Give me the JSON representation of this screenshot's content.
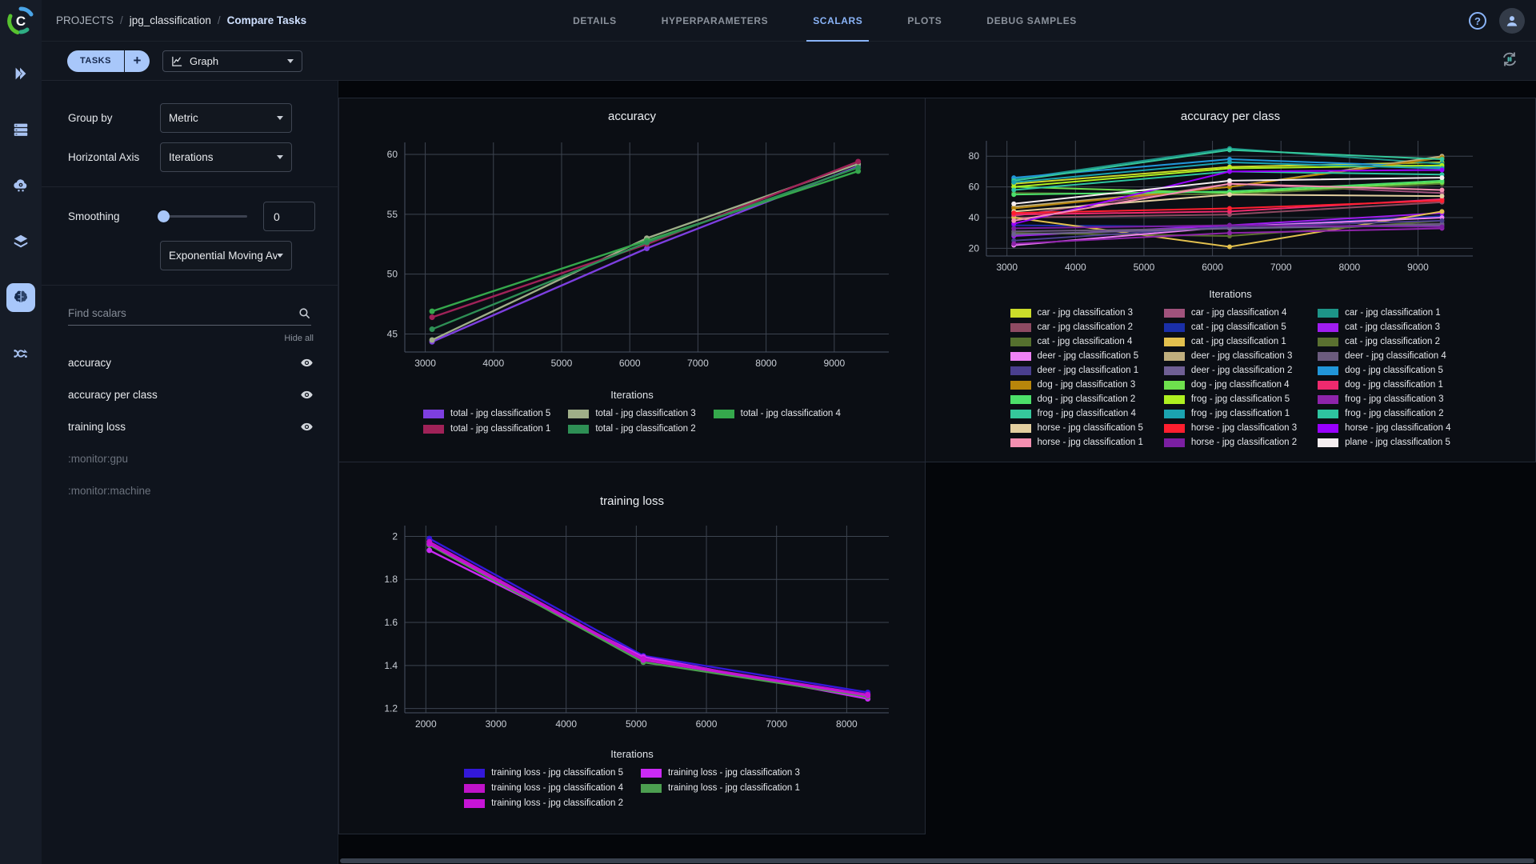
{
  "header": {
    "breadcrumb": [
      "PROJECTS",
      "jpg_classification",
      "Compare Tasks"
    ],
    "separator": "/",
    "tabs": [
      {
        "label": "DETAILS",
        "active": false
      },
      {
        "label": "HYPERPARAMETERS",
        "active": false
      },
      {
        "label": "SCALARS",
        "active": true
      },
      {
        "label": "PLOTS",
        "active": false
      },
      {
        "label": "DEBUG SAMPLES",
        "active": false
      }
    ],
    "help_glyph": "?"
  },
  "toolbar": {
    "tasks_label": "TASKS",
    "add_label": "+",
    "view_selector": "Graph"
  },
  "icons": {
    "rail": [
      "run-icon",
      "workers-icon",
      "applications-icon",
      "datasets-icon",
      "experiments-brain-icon",
      "pipelines-icon"
    ],
    "top_right": [
      "help-icon",
      "user-avatar"
    ],
    "toolbar_right": "refresh-pause-icon"
  },
  "controls": {
    "group_by_label": "Group by",
    "group_by_value": "Metric",
    "horizontal_axis_label": "Horizontal Axis",
    "horizontal_axis_value": "Iterations",
    "smoothing_label": "Smoothing",
    "smoothing_value": "0",
    "smoothing_type_value": "Exponential Moving Av...",
    "search_placeholder": "Find scalars",
    "hide_all": "Hide all"
  },
  "scalars": {
    "items": [
      {
        "label": "accuracy",
        "visible": true
      },
      {
        "label": "accuracy per class",
        "visible": true
      },
      {
        "label": "training loss",
        "visible": true
      },
      {
        "label": ":monitor:gpu",
        "visible": false
      },
      {
        "label": ":monitor:machine",
        "visible": false
      }
    ]
  },
  "charts": {
    "accuracy": {
      "type": "line",
      "title": "accuracy",
      "xlabel": "Iterations",
      "x": [
        3100,
        6250,
        9350
      ],
      "xlim": [
        2700,
        9800
      ],
      "xticks": [
        3000,
        4000,
        5000,
        6000,
        7000,
        8000,
        9000
      ],
      "ylim": [
        43.5,
        61
      ],
      "yticks": [
        45,
        50,
        55,
        60
      ],
      "legend_columns": 3,
      "line_width": 2.4,
      "marker_r": 3.5,
      "series": [
        {
          "name": "total - jpg classification 5",
          "color": "#7d3fe0",
          "values": [
            44.35,
            52.15,
            59.0
          ]
        },
        {
          "name": "total - jpg classification 3",
          "color": "#9fae88",
          "values": [
            44.5,
            53.0,
            59.2
          ]
        },
        {
          "name": "total - jpg classification 4",
          "color": "#35a84c",
          "values": [
            46.9,
            52.8,
            58.6
          ]
        },
        {
          "name": "total - jpg classification 1",
          "color": "#a02258",
          "values": [
            46.4,
            52.5,
            59.4
          ]
        },
        {
          "name": "total - jpg classification 2",
          "color": "#2e8f55",
          "values": [
            45.4,
            52.65,
            58.9
          ]
        }
      ]
    },
    "accuracy_per_class": {
      "type": "line",
      "title": "accuracy per class",
      "xlabel": "Iterations",
      "x": [
        3100,
        6250,
        9350
      ],
      "xlim": [
        2700,
        9800
      ],
      "xticks": [
        3000,
        4000,
        5000,
        6000,
        7000,
        8000,
        9000
      ],
      "ylim": [
        15,
        90
      ],
      "yticks": [
        20,
        40,
        60,
        80
      ],
      "legend_columns": 3,
      "line_width": 2,
      "marker_r": 3,
      "legend_clipped": true,
      "series": [
        {
          "name": "car - jpg classification 3",
          "color": "#cbdb2a",
          "values": [
            62,
            73,
            76
          ]
        },
        {
          "name": "car - jpg classification 4",
          "color": "#a0527c",
          "values": [
            41,
            62,
            56
          ]
        },
        {
          "name": "car - jpg classification 1",
          "color": "#1d9488",
          "values": [
            65,
            85,
            75
          ]
        },
        {
          "name": "car - jpg classification 2",
          "color": "#8e4a62",
          "values": [
            40,
            42,
            50
          ]
        },
        {
          "name": "cat - jpg classification 5",
          "color": "#1a2fa8",
          "values": [
            35,
            34,
            41
          ]
        },
        {
          "name": "cat - jpg classification 3",
          "color": "#a01df0",
          "values": [
            28,
            35,
            43
          ]
        },
        {
          "name": "cat - jpg classification 4",
          "color": "#55702e",
          "values": [
            56,
            55,
            62
          ]
        },
        {
          "name": "cat - jpg classification 1",
          "color": "#e2c04e",
          "values": [
            40,
            21,
            44
          ]
        },
        {
          "name": "cat - jpg classification 2",
          "color": "#5a7030",
          "values": [
            30,
            28,
            38
          ]
        },
        {
          "name": "deer - jpg classification 5",
          "color": "#ee82f5",
          "values": [
            22,
            34,
            40
          ]
        },
        {
          "name": "deer - jpg classification 3",
          "color": "#bfae7e",
          "values": [
            47,
            60,
            80
          ]
        },
        {
          "name": "deer - jpg classification 4",
          "color": "#6b5b7e",
          "values": [
            31,
            33,
            36
          ]
        },
        {
          "name": "deer - jpg classification 1",
          "color": "#4a3f8f",
          "values": [
            25,
            34,
            38
          ]
        },
        {
          "name": "deer - jpg classification 2",
          "color": "#6f5f94",
          "values": [
            29,
            33,
            35
          ]
        },
        {
          "name": "dog - jpg classification 5",
          "color": "#2196d9",
          "values": [
            66,
            78,
            73
          ]
        },
        {
          "name": "dog - jpg classification 3",
          "color": "#b8860b",
          "values": [
            46,
            60,
            79
          ]
        },
        {
          "name": "dog - jpg classification 4",
          "color": "#6ee04d",
          "values": [
            60,
            56,
            63
          ]
        },
        {
          "name": "dog - jpg classification 1",
          "color": "#ee2a6e",
          "values": [
            42,
            44,
            52
          ]
        },
        {
          "name": "dog - jpg classification 2",
          "color": "#4ce06a",
          "values": [
            55,
            57,
            64
          ]
        },
        {
          "name": "frog - jpg classification 5",
          "color": "#aef020",
          "values": [
            60,
            72,
            74
          ]
        },
        {
          "name": "frog - jpg classification 3",
          "color": "#8e24aa",
          "values": [
            23,
            30,
            33
          ]
        },
        {
          "name": "frog - jpg classification 4",
          "color": "#35c79b",
          "values": [
            64,
            84,
            78
          ]
        },
        {
          "name": "frog - jpg classification 1",
          "color": "#1ba3b0",
          "values": [
            63,
            76,
            72
          ]
        },
        {
          "name": "frog - jpg classification 2",
          "color": "#2ec4a0",
          "values": [
            58,
            70,
            68
          ]
        },
        {
          "name": "horse - jpg classification 5",
          "color": "#e3cfa0",
          "values": [
            44,
            55,
            54
          ]
        },
        {
          "name": "horse - jpg classification 3",
          "color": "#ff1f2f",
          "values": [
            43,
            46,
            51
          ]
        },
        {
          "name": "horse - jpg classification 4",
          "color": "#9900ff",
          "values": [
            36,
            70,
            71
          ]
        },
        {
          "name": "horse - jpg classification 1",
          "color": "#f48fb1",
          "values": [
            38,
            62,
            58
          ]
        },
        {
          "name": "horse - jpg classification 2",
          "color": "#7b1fa2",
          "values": [
            33,
            35,
            34
          ]
        },
        {
          "name": "plane - jpg classification 5",
          "color": "#f5eef0",
          "values": [
            49,
            64,
            66
          ]
        }
      ]
    },
    "training_loss": {
      "type": "line",
      "title": "training loss",
      "xlabel": "Iterations",
      "x": [
        2050,
        5100,
        8300
      ],
      "xlim": [
        1700,
        8600
      ],
      "xticks": [
        2000,
        3000,
        4000,
        5000,
        6000,
        7000,
        8000
      ],
      "ylim": [
        1.18,
        2.05
      ],
      "yticks": [
        1.2,
        1.4,
        1.6,
        1.8,
        2
      ],
      "legend_columns": 2,
      "line_width": 2.4,
      "marker_r": 3.5,
      "series": [
        {
          "name": "training loss - jpg classification 5",
          "color": "#3318d9",
          "values": [
            1.99,
            1.445,
            1.275
          ]
        },
        {
          "name": "training loss - jpg classification 3",
          "color": "#cb2af5",
          "values": [
            1.935,
            1.44,
            1.245
          ]
        },
        {
          "name": "training loss - jpg classification 4",
          "color": "#c013c9",
          "values": [
            1.975,
            1.43,
            1.265
          ]
        },
        {
          "name": "training loss - jpg classification 1",
          "color": "#4c9e50",
          "values": [
            1.96,
            1.415,
            1.255
          ]
        },
        {
          "name": "training loss - jpg classification 2",
          "color": "#c614d6",
          "values": [
            1.965,
            1.425,
            1.26
          ]
        }
      ]
    }
  }
}
